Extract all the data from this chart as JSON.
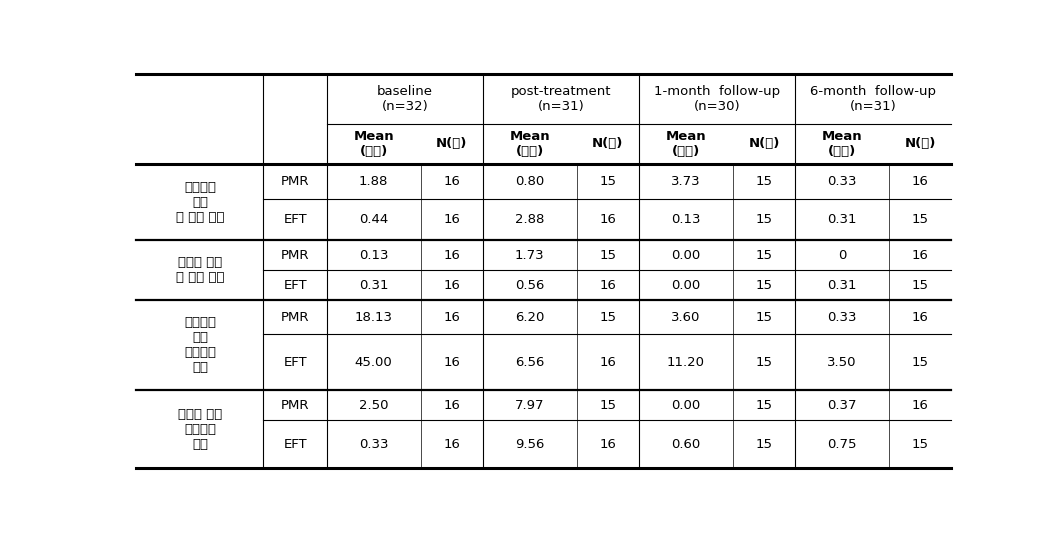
{
  "col_groups": [
    {
      "label": "baseline\n(n=32)",
      "span": 2
    },
    {
      "label": "post-treatment\n(n=31)",
      "span": 2
    },
    {
      "label": "1-month  follow-up\n(n=30)",
      "span": 2
    },
    {
      "label": "6-month  follow-up\n(n=31)",
      "span": 2
    }
  ],
  "sub_headers": [
    "Mean\n(시간)",
    "N(명)",
    "Mean\n(시간)",
    "N(명)",
    "Mean\n(시간)",
    "N(명)",
    "Mean\n(시간)",
    "N(명)"
  ],
  "row_groups": [
    {
      "label_lines": [
        "증상으로",
        "인한",
        "일 손실 시간"
      ],
      "rows": [
        {
          "group": "PMR",
          "values": [
            "1.88",
            "16",
            "0.80",
            "15",
            "3.73",
            "15",
            "0.33",
            "16"
          ]
        },
        {
          "group": "EFT",
          "values": [
            "0.44",
            "16",
            "2.88",
            "16",
            "0.13",
            "15",
            "0.31",
            "15"
          ]
        }
      ]
    },
    {
      "label_lines": [
        "치료로 인한",
        "일 손실 시간"
      ],
      "rows": [
        {
          "group": "PMR",
          "values": [
            "0.13",
            "16",
            "1.73",
            "15",
            "0.00",
            "15",
            "0",
            "16"
          ]
        },
        {
          "group": "EFT",
          "values": [
            "0.31",
            "16",
            "0.56",
            "16",
            "0.00",
            "15",
            "0.31",
            "15"
          ]
        }
      ]
    },
    {
      "label_lines": [
        "증상으로",
        "인한",
        "가사손실",
        "시간"
      ],
      "rows": [
        {
          "group": "PMR",
          "values": [
            "18.13",
            "16",
            "6.20",
            "15",
            "3.60",
            "15",
            "0.33",
            "16"
          ]
        },
        {
          "group": "EFT",
          "values": [
            "45.00",
            "16",
            "6.56",
            "16",
            "11.20",
            "15",
            "3.50",
            "15"
          ]
        }
      ]
    },
    {
      "label_lines": [
        "치료로 인한",
        "가사손실",
        "시간"
      ],
      "rows": [
        {
          "group": "PMR",
          "values": [
            "2.50",
            "16",
            "7.97",
            "15",
            "0.00",
            "15",
            "0.37",
            "16"
          ]
        },
        {
          "group": "EFT",
          "values": [
            "0.33",
            "16",
            "9.56",
            "16",
            "0.60",
            "15",
            "0.75",
            "15"
          ]
        }
      ]
    }
  ],
  "bg_color": "#ffffff",
  "text_color": "#000000",
  "border_color": "#000000"
}
